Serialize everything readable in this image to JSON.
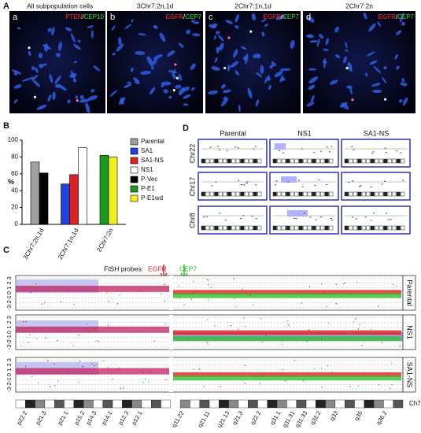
{
  "panel_letters": [
    "A",
    "B",
    "C",
    "D"
  ],
  "panel_a": {
    "images": [
      {
        "letter": "a",
        "title": "All subpopulation cells",
        "probes": [
          "PTEN",
          "/",
          "CEP10"
        ]
      },
      {
        "letter": "b",
        "title": "3Chr7:2n,1d",
        "probes": [
          "EGFR",
          "/",
          "CEP7"
        ]
      },
      {
        "letter": "c",
        "title": "2Chr7:1n,1d",
        "probes": [
          "EGFR",
          "/",
          "CEP7"
        ]
      },
      {
        "letter": "d",
        "title": "2Chr7:2n",
        "probes": [
          "EGFR",
          "/",
          "CEP7"
        ]
      }
    ]
  },
  "chart_data": {
    "type": "bar",
    "ylabel": "%",
    "categories": [
      "3Chr7:2n,1d",
      "2Chr7:1n,1d",
      "2Chr7:2n"
    ],
    "series": [
      {
        "name": "Parental",
        "color": "#a0a0a0",
        "values": [
          74,
          null,
          null
        ]
      },
      {
        "name": "SA1",
        "color": "#2040e0",
        "values": [
          null,
          48,
          null
        ]
      },
      {
        "name": "SA1-NS",
        "color": "#e02020",
        "values": [
          null,
          59,
          null
        ]
      },
      {
        "name": "NS1",
        "color": "#ffffff",
        "values": [
          null,
          91,
          null
        ]
      },
      {
        "name": "P-Vec",
        "color": "#000000",
        "values": [
          61,
          null,
          null
        ]
      },
      {
        "name": "P-E1",
        "color": "#1a9a1a",
        "values": [
          null,
          null,
          82
        ]
      },
      {
        "name": "P-E1wd",
        "color": "#f0f020",
        "values": [
          null,
          null,
          80
        ]
      }
    ],
    "ylim": [
      0,
      100
    ],
    "yticks": [
      0,
      20,
      40,
      60,
      80,
      100
    ],
    "grid": false
  },
  "panel_c": {
    "fish_label": "FISH probes:",
    "probes": [
      "EGFR",
      "CEP7"
    ],
    "y_tick_labels": [
      "-3",
      "-2",
      "-1",
      "0",
      "1",
      "2",
      "3"
    ],
    "samples": [
      "Parental",
      "NS1",
      "SA1-NS"
    ],
    "chromosome": "Ch7",
    "bands": [
      "p22.2",
      "p21.3",
      "p21.1",
      "p15.2",
      "p14.3",
      "p14.1",
      "p12.3",
      "p12.1",
      "q11.22",
      "q21.11",
      "q21.13",
      "q21.3",
      "q22.2",
      "q31.1",
      "q31.31",
      "q31.33",
      "q32.2",
      "q33",
      "q35",
      "q36.2"
    ]
  },
  "panel_d": {
    "samples": [
      "Parental",
      "NS1",
      "SA1-NS"
    ],
    "chromosomes": [
      "Chr22",
      "Chr17",
      "Chr8"
    ]
  }
}
